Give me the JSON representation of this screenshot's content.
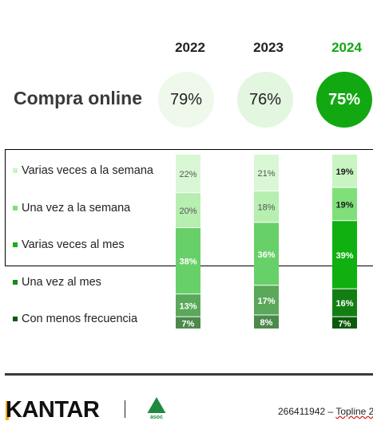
{
  "header": {
    "years": [
      "2022",
      "2023",
      "2024"
    ],
    "highlight_color": "#12a812"
  },
  "summary": {
    "title": "Compra online",
    "values": [
      "79%",
      "76%",
      "75%"
    ]
  },
  "chart_data": {
    "type": "bar",
    "stacked": true,
    "percent_stacked": true,
    "categories": [
      "2022",
      "2023",
      "2024"
    ],
    "series": [
      {
        "name": "Varias veces a la semana",
        "values": [
          22,
          21,
          19
        ],
        "labels": [
          "22%",
          "21%",
          "19%"
        ],
        "colors": [
          "#d9f7d5",
          "#d9f7d5",
          "#c8f5c2"
        ]
      },
      {
        "name": "Una vez a la semana",
        "values": [
          20,
          18,
          19
        ],
        "labels": [
          "20%",
          "18%",
          "19%"
        ],
        "colors": [
          "#b6efb0",
          "#b6efb0",
          "#7fe07a"
        ]
      },
      {
        "name": "Varias veces al mes",
        "values": [
          38,
          36,
          39
        ],
        "labels": [
          "38%",
          "36%",
          "39%"
        ],
        "colors": [
          "#68d068",
          "#68d068",
          "#0fb00f"
        ]
      },
      {
        "name": "Una vez al mes",
        "values": [
          13,
          17,
          16
        ],
        "labels": [
          "13%",
          "17%",
          "16%"
        ],
        "colors": [
          "#5aa85a",
          "#5aa85a",
          "#137f13"
        ]
      },
      {
        "name": "Con menos frecuencia",
        "values": [
          7,
          8,
          7
        ],
        "labels": [
          "7%",
          "8%",
          "7%"
        ],
        "colors": [
          "#4c8a4c",
          "#4c8a4c",
          "#0b5a0b"
        ]
      }
    ],
    "legend": {
      "placement": "left",
      "swatch_colors": [
        "#c8f5c2",
        "#7fe07a",
        "#19b019",
        "#148a14",
        "#0b5a0b"
      ]
    }
  },
  "footer": {
    "brand": "KANTAR",
    "partner_logo": "aecoc-tree-logo",
    "code": "266411942 – ",
    "topline": "Topline 2"
  }
}
